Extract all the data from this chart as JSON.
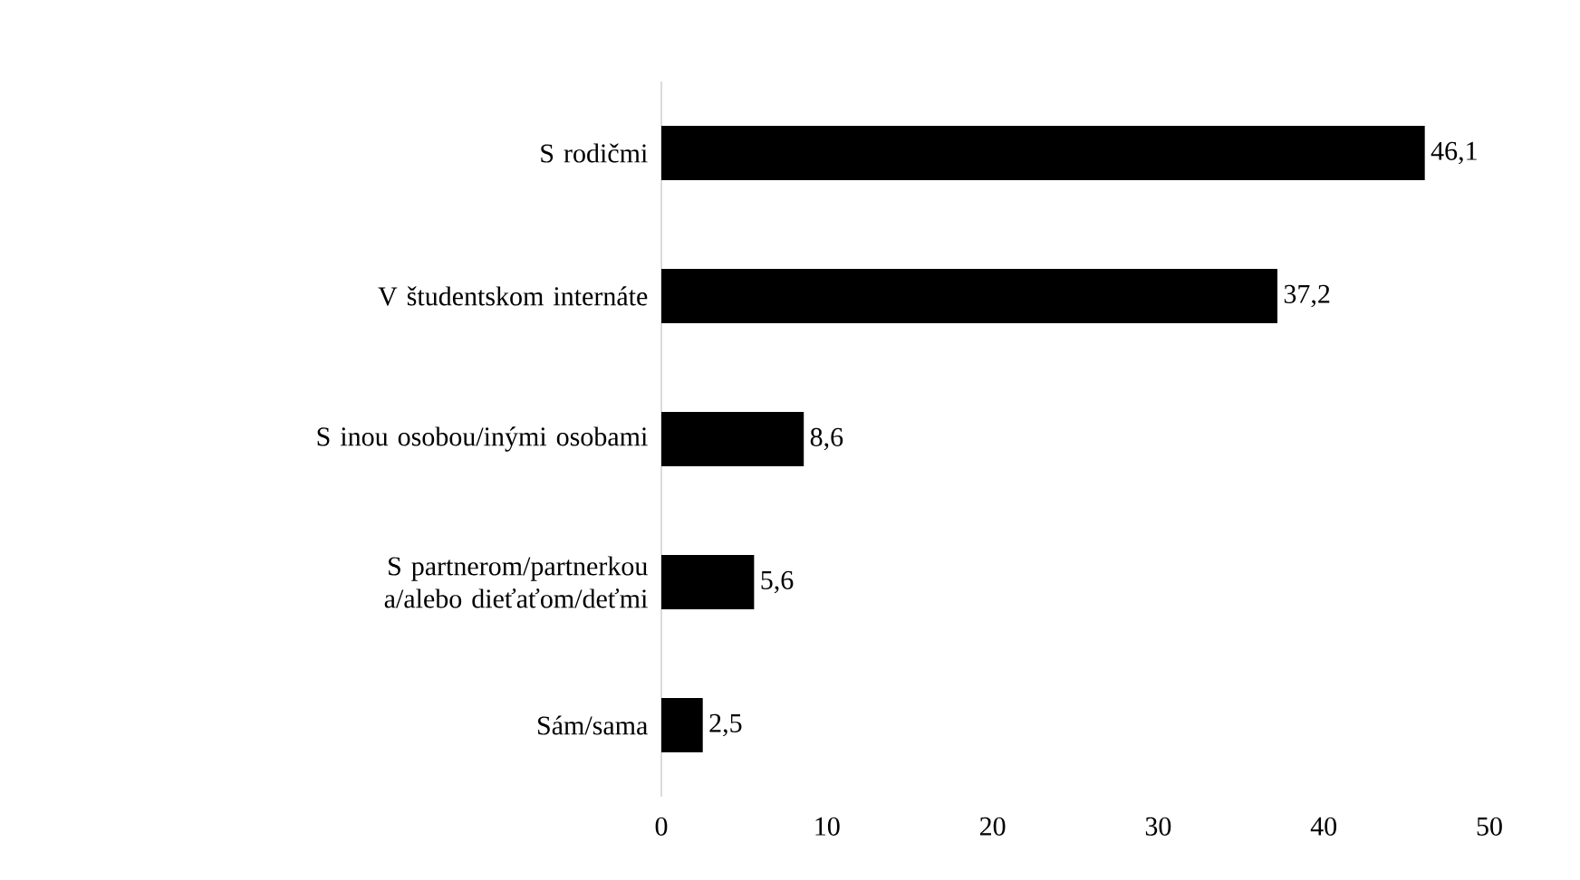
{
  "chart_data": {
    "type": "bar",
    "orientation": "horizontal",
    "categories": [
      "S rodičmi",
      "V študentskom internáte",
      "S inou osobou/inými osobami",
      "S  partnerom/partnerkou a/alebo dieťaťom/deťmi",
      "Sám/sama"
    ],
    "values": [
      46.1,
      37.2,
      8.6,
      5.6,
      2.5
    ],
    "value_labels": [
      "46,1",
      "37,2",
      "8,6",
      "5,6",
      "2,5"
    ],
    "color": "#000000",
    "xlim": [
      0,
      50
    ],
    "xticks": [
      0,
      10,
      20,
      30,
      40,
      50
    ],
    "grid": false
  }
}
